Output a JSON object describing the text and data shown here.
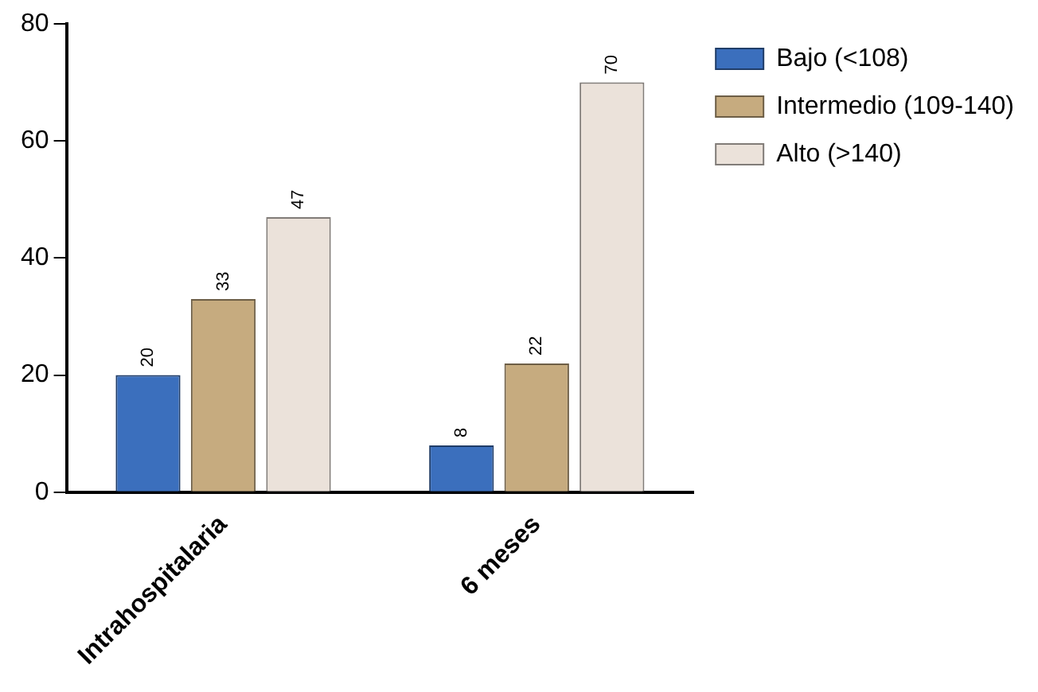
{
  "chart_data": {
    "type": "bar",
    "categories": [
      "Intrahospitalaria",
      "6 meses"
    ],
    "series": [
      {
        "name": "Bajo (<108)",
        "color": "#3b6fbd",
        "values": [
          20,
          8
        ]
      },
      {
        "name": "Intermedio (109-140)",
        "color": "#c6ab7f",
        "values": [
          33,
          22
        ]
      },
      {
        "name": "Alto (>140)",
        "color": "#ebe2da",
        "values": [
          47,
          70
        ]
      }
    ],
    "ylim": [
      0,
      80
    ],
    "yticks": [
      0,
      20,
      40,
      60,
      80
    ],
    "grid": false,
    "legend": "top right",
    "data_labels": true
  }
}
